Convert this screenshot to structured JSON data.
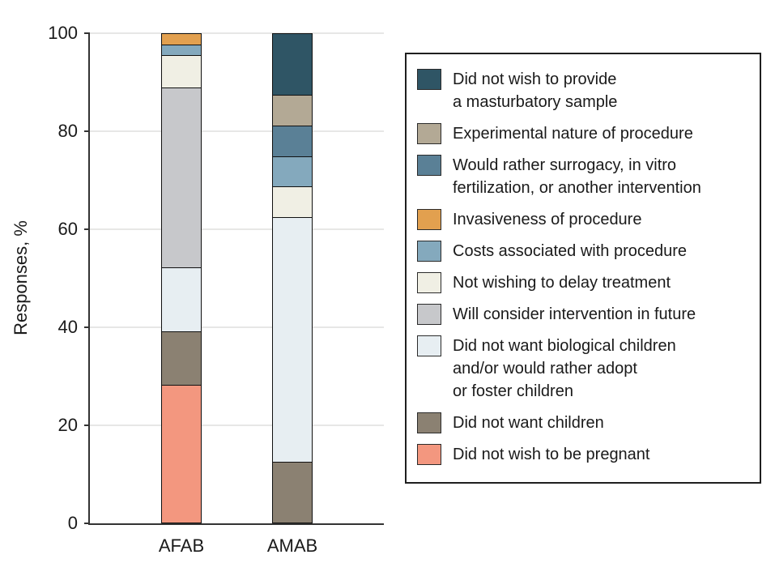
{
  "chart_data": {
    "type": "bar",
    "stacked": true,
    "orientation": "vertical",
    "title": "",
    "xlabel": "",
    "ylabel": "Responses, %",
    "ylim": [
      0,
      100
    ],
    "yticks": [
      0,
      20,
      40,
      60,
      80,
      100
    ],
    "grid": true,
    "legend_position": "right",
    "categories": [
      "AFAB",
      "AMAB"
    ],
    "series": [
      {
        "name": "Did not wish to be pregnant",
        "color": "#f3977f",
        "values": [
          28.26,
          0
        ]
      },
      {
        "name": "Did not want children",
        "color": "#8b8172",
        "values": [
          10.87,
          12.5
        ]
      },
      {
        "name": "Did not want biological children and/or would rather adopt or foster children",
        "color": "#e7eef2",
        "values": [
          13.04,
          50.0
        ]
      },
      {
        "name": "Will consider intervention in future",
        "color": "#c7c8cb",
        "values": [
          36.96,
          0
        ]
      },
      {
        "name": "Not wishing to delay treatment",
        "color": "#f0efe4",
        "values": [
          6.52,
          6.25
        ]
      },
      {
        "name": "Costs associated with procedure",
        "color": "#84a9bd",
        "values": [
          2.17,
          6.25
        ]
      },
      {
        "name": "Invasiveness of procedure",
        "color": "#e2a04f",
        "values": [
          2.17,
          0
        ]
      },
      {
        "name": "Would rather surrogacy, in vitro fertilization, or another intervention",
        "color": "#5a8096",
        "values": [
          0,
          6.25
        ]
      },
      {
        "name": "Experimental nature of procedure",
        "color": "#b3a995",
        "values": [
          0,
          6.25
        ]
      },
      {
        "name": "Did not wish to provide a masturbatory sample",
        "color": "#2f5565",
        "values": [
          0,
          12.5
        ]
      }
    ]
  },
  "legend": {
    "items": [
      {
        "color": "#2f5565",
        "label_lines": [
          "Did not wish to provide",
          "a masturbatory sample"
        ]
      },
      {
        "color": "#b3a995",
        "label_lines": [
          "Experimental nature of procedure"
        ]
      },
      {
        "color": "#5a8096",
        "label_lines": [
          "Would rather surrogacy, in vitro",
          "fertilization, or another intervention"
        ]
      },
      {
        "color": "#e2a04f",
        "label_lines": [
          "Invasiveness of procedure"
        ]
      },
      {
        "color": "#84a9bd",
        "label_lines": [
          "Costs associated with procedure"
        ]
      },
      {
        "color": "#f0efe4",
        "label_lines": [
          "Not wishing to delay treatment"
        ]
      },
      {
        "color": "#c7c8cb",
        "label_lines": [
          "Will consider intervention in future"
        ]
      },
      {
        "color": "#e7eef2",
        "label_lines": [
          "Did not want biological children",
          "and/or would rather adopt",
          "or foster children"
        ]
      },
      {
        "color": "#8b8172",
        "label_lines": [
          "Did not want children"
        ]
      },
      {
        "color": "#f3977f",
        "label_lines": [
          "Did not wish to be pregnant"
        ]
      }
    ]
  }
}
